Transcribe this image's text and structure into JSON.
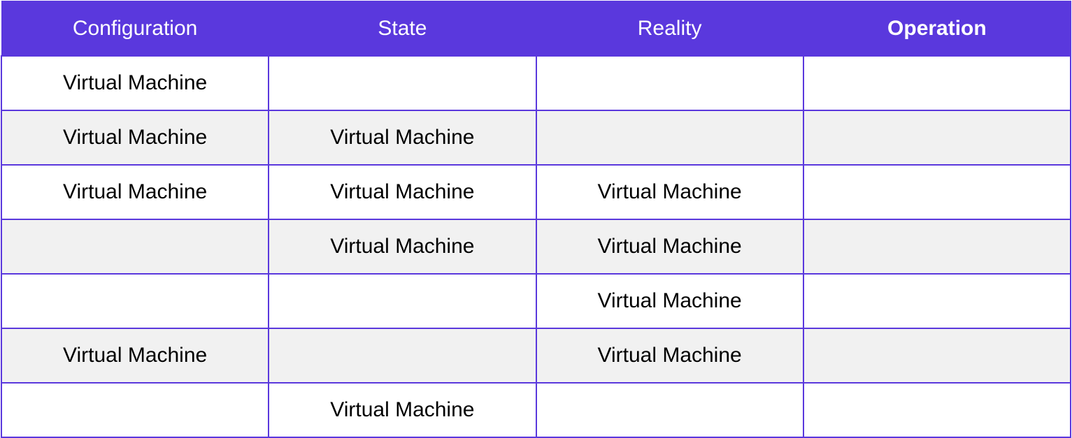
{
  "table": {
    "headers": [
      "Configuration",
      "State",
      "Reality",
      "Operation"
    ],
    "rows": [
      [
        "Virtual Machine",
        "",
        "",
        ""
      ],
      [
        "Virtual Machine",
        "Virtual Machine",
        "",
        ""
      ],
      [
        "Virtual Machine",
        "Virtual Machine",
        "Virtual Machine",
        ""
      ],
      [
        "",
        "Virtual Machine",
        "Virtual Machine",
        ""
      ],
      [
        "",
        "",
        "Virtual Machine",
        ""
      ],
      [
        "Virtual Machine",
        "",
        "Virtual Machine",
        ""
      ],
      [
        "",
        "Virtual Machine",
        "",
        ""
      ]
    ]
  },
  "colors": {
    "header_bg": "#5a38dd",
    "header_text": "#ffffff",
    "grid_lines": "#5a38dd",
    "shaded_row": "#f1f1f1"
  }
}
